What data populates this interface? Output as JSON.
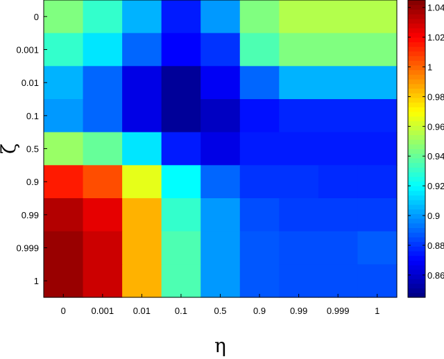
{
  "chart_data": {
    "type": "heatmap",
    "title": "",
    "xlabel": "η",
    "ylabel": "ζ",
    "x_categories": [
      "0",
      "0.001",
      "0.01",
      "0.1",
      "0.5",
      "0.9",
      "0.99",
      "0.999",
      "1"
    ],
    "y_categories": [
      "0",
      "0.001",
      "0.01",
      "0.1",
      "0.5",
      "0.9",
      "0.99",
      "0.999",
      "1"
    ],
    "colormap": "jet",
    "clim": [
      0.845,
      1.045
    ],
    "colorbar_ticks": [
      "0.86",
      "0.88",
      "0.9",
      "0.92",
      "0.94",
      "0.96",
      "0.98",
      "1",
      "1.02",
      "1.04"
    ],
    "grid": false,
    "values": [
      [
        0.945,
        0.93,
        0.905,
        0.875,
        0.9,
        0.945,
        0.955,
        0.955,
        0.955
      ],
      [
        0.93,
        0.915,
        0.89,
        0.87,
        0.88,
        0.935,
        0.945,
        0.945,
        0.945
      ],
      [
        0.905,
        0.89,
        0.865,
        0.85,
        0.868,
        0.89,
        0.905,
        0.905,
        0.905
      ],
      [
        0.9,
        0.89,
        0.865,
        0.85,
        0.858,
        0.873,
        0.877,
        0.877,
        0.877
      ],
      [
        0.95,
        0.94,
        0.915,
        0.875,
        0.865,
        0.875,
        0.875,
        0.875,
        0.875
      ],
      [
        1.015,
        1.005,
        0.965,
        0.92,
        0.89,
        0.88,
        0.88,
        0.878,
        0.878
      ],
      [
        1.035,
        1.025,
        0.985,
        0.93,
        0.9,
        0.885,
        0.882,
        0.882,
        0.882
      ],
      [
        1.04,
        1.03,
        0.985,
        0.935,
        0.9,
        0.887,
        0.885,
        0.885,
        0.888
      ],
      [
        1.04,
        1.03,
        0.985,
        0.935,
        0.9,
        0.887,
        0.885,
        0.885,
        0.885
      ]
    ]
  }
}
